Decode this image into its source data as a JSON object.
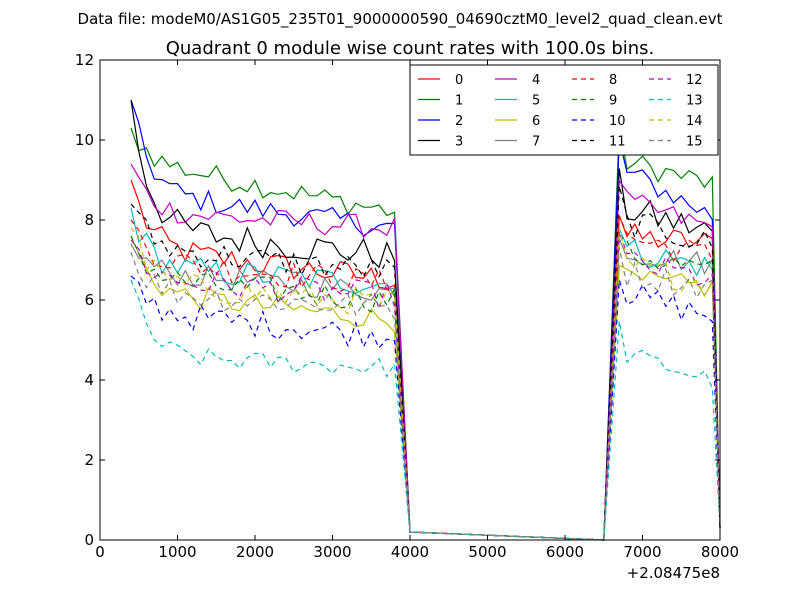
{
  "chart_data": {
    "type": "line",
    "suptitle": "Data file: modeM0/AS1G05_235T01_9000000590_04690cztM0_level2_quad_clean.evt",
    "title": "Quadrant 0 module wise count rates with 100.0s bins.",
    "xlabel": "",
    "ylabel": "",
    "x_offset_label": "+2.08475e8",
    "xlim": [
      0,
      8000
    ],
    "ylim": [
      0,
      12
    ],
    "xticks": [
      0,
      1000,
      2000,
      3000,
      4000,
      5000,
      6000,
      7000,
      8000
    ],
    "yticks": [
      0,
      2,
      4,
      6,
      8,
      10,
      12
    ],
    "legend": {
      "placement": "top-right",
      "ncol": 4
    },
    "segments": [
      {
        "x_start": 400,
        "x_end": 3800,
        "step": 100,
        "drop_to": 4000
      },
      {
        "rise_from": 6500,
        "x_start": 6700,
        "x_end": 7900,
        "step": 100,
        "drop_to": 8000
      }
    ],
    "series": [
      {
        "name": "0",
        "color": "#ff0000",
        "dash": "solid",
        "first": 9.0,
        "level1": 7.3,
        "end1": 6.5,
        "level2": 7.6,
        "end2": 7.4,
        "noise": 0.35
      },
      {
        "name": "1",
        "color": "#008000",
        "dash": "solid",
        "first": 10.3,
        "level1": 9.5,
        "end1": 8.2,
        "level2": 9.5,
        "end2": 8.9,
        "noise": 0.3
      },
      {
        "name": "2",
        "color": "#0000ff",
        "dash": "solid",
        "first": 11.0,
        "level1": 8.7,
        "end1": 7.8,
        "level2": 9.3,
        "end2": 8.1,
        "noise": 0.3
      },
      {
        "name": "3",
        "color": "#000000",
        "dash": "solid",
        "first": 11.0,
        "level1": 7.8,
        "end1": 7.1,
        "level2": 8.3,
        "end2": 7.7,
        "noise": 0.4
      },
      {
        "name": "4",
        "color": "#bf00bf",
        "dash": "solid",
        "first": 9.4,
        "level1": 8.2,
        "end1": 7.8,
        "level2": 8.5,
        "end2": 7.8,
        "noise": 0.3
      },
      {
        "name": "5",
        "color": "#00bfbf",
        "dash": "solid",
        "first": 8.3,
        "level1": 6.8,
        "end1": 6.4,
        "level2": 7.3,
        "end2": 6.8,
        "noise": 0.35
      },
      {
        "name": "6",
        "color": "#bfbf00",
        "dash": "solid",
        "first": 7.6,
        "level1": 6.2,
        "end1": 5.5,
        "level2": 6.5,
        "end2": 6.3,
        "noise": 0.3
      },
      {
        "name": "7",
        "color": "#808080",
        "dash": "solid",
        "first": 7.4,
        "level1": 6.7,
        "end1": 6.2,
        "level2": 7.2,
        "end2": 6.9,
        "noise": 0.3
      },
      {
        "name": "8",
        "color": "#ff0000",
        "dash": "dashed",
        "first": 8.0,
        "level1": 7.0,
        "end1": 6.4,
        "level2": 7.6,
        "end2": 7.1,
        "noise": 0.35
      },
      {
        "name": "9",
        "color": "#008000",
        "dash": "dashed",
        "first": 7.6,
        "level1": 6.5,
        "end1": 6.0,
        "level2": 7.2,
        "end2": 6.7,
        "noise": 0.35
      },
      {
        "name": "10",
        "color": "#0000ff",
        "dash": "dashed",
        "first": 6.6,
        "level1": 5.7,
        "end1": 5.1,
        "level2": 6.2,
        "end2": 5.6,
        "noise": 0.35
      },
      {
        "name": "11",
        "color": "#000000",
        "dash": "dashed",
        "first": 8.4,
        "level1": 7.3,
        "end1": 6.7,
        "level2": 8.0,
        "end2": 7.4,
        "noise": 0.35
      },
      {
        "name": "12",
        "color": "#bf00bf",
        "dash": "dashed",
        "first": 7.5,
        "level1": 6.5,
        "end1": 6.1,
        "level2": 7.0,
        "end2": 6.5,
        "noise": 0.35
      },
      {
        "name": "13",
        "color": "#00bfbf",
        "dash": "dashed",
        "first": 6.5,
        "level1": 4.6,
        "end1": 4.3,
        "level2": 4.7,
        "end2": 4.0,
        "noise": 0.25
      },
      {
        "name": "14",
        "color": "#bfbf00",
        "dash": "dashed",
        "first": 7.8,
        "level1": 6.4,
        "end1": 5.9,
        "level2": 6.9,
        "end2": 6.4,
        "noise": 0.35
      },
      {
        "name": "15",
        "color": "#808080",
        "dash": "dashed",
        "first": 7.2,
        "level1": 6.2,
        "end1": 5.8,
        "level2": 6.7,
        "end2": 6.3,
        "noise": 0.35
      }
    ]
  }
}
